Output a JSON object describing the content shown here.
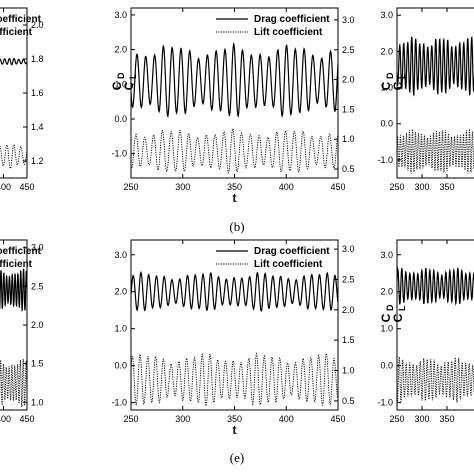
{
  "caption_b": "(b)",
  "caption_e": "(e)",
  "chart_data": [
    {
      "type": "line",
      "panel": "top-left (cropped)",
      "xlabel": "",
      "y_left_label": "",
      "y_right_label": "",
      "xlim": [
        350,
        450
      ],
      "x_ticks": [
        "400",
        "450"
      ],
      "ylim_left": [
        -1.5,
        3.2
      ],
      "y_left_ticks": [],
      "ylim_right": [
        1.1,
        2.1
      ],
      "y_right_ticks": [
        "1.2",
        "1.4",
        "1.6",
        "1.8",
        "2.0"
      ],
      "legend": {
        "position": "top",
        "entries": [
          "Drag coefficient",
          "Lift coefficient"
        ],
        "visible_text": [
          "g coefficient",
          "coefficient"
        ]
      },
      "series": [
        {
          "name": "Drag coefficient",
          "axis": "left",
          "style": "solid",
          "mean": 1.72,
          "amplitude": 0.07,
          "period": 10
        },
        {
          "name": "Lift coefficient",
          "axis": "right",
          "style": "dotted",
          "mean": 1.23,
          "amplitude": 0.06,
          "period": 15
        }
      ]
    },
    {
      "type": "line",
      "panel": "top-middle",
      "xlabel": "t",
      "y_left_label": "",
      "y_right_label": "",
      "xlim": [
        250,
        450
      ],
      "x_ticks": [
        "250",
        "300",
        "350",
        "400",
        "450"
      ],
      "ylim_left": [
        -1.7,
        3.2
      ],
      "y_left_ticks": [
        "-1.0",
        "0.0",
        "1.0",
        "2.0",
        "3.0"
      ],
      "ylim_right": [
        0.35,
        3.2
      ],
      "y_right_ticks": [
        "0.5",
        "1.0",
        "1.5",
        "2.0",
        "2.5",
        "3.0"
      ],
      "legend": {
        "position": "top-right",
        "entries": [
          "Drag coefficient",
          "Lift coefficient"
        ]
      },
      "series": [
        {
          "name": "Drag coefficient",
          "axis": "left",
          "style": "solid",
          "mean": 1.1,
          "amplitude": 0.85,
          "period": 8.5
        },
        {
          "name": "Lift coefficient",
          "axis": "right",
          "style": "dotted",
          "mean": 0.8,
          "amplitude": 0.3,
          "period": 8.5
        }
      ]
    },
    {
      "type": "line",
      "panel": "top-right (cropped)",
      "xlabel": "",
      "y_left_label": "",
      "y_right_label": "",
      "xlim": [
        250,
        450
      ],
      "x_ticks": [
        "250",
        "300",
        "350"
      ],
      "ylim_left": [
        -1.5,
        3.2
      ],
      "y_left_ticks": [
        "-1.0",
        "0.0",
        "1.0",
        "2.0",
        "3.0"
      ],
      "ylim_right": [
        0.35,
        3.2
      ],
      "y_right_ticks": [],
      "series": [
        {
          "name": "Drag coefficient",
          "axis": "left",
          "style": "solid",
          "mean": 1.6,
          "amplitude": 0.65,
          "period": 8
        },
        {
          "name": "Lift coefficient",
          "axis": "right",
          "style": "dotted",
          "mean": 0.8,
          "amplitude": 0.3,
          "period": 6
        }
      ]
    },
    {
      "type": "line",
      "panel": "bottom-left (cropped)",
      "xlabel": "",
      "y_left_label": "",
      "y_right_label": "",
      "xlim": [
        350,
        450
      ],
      "x_ticks": [
        "400",
        "450"
      ],
      "ylim_left": [
        -1.2,
        3.4
      ],
      "y_left_ticks": [],
      "ylim_right": [
        0.9,
        3.1
      ],
      "y_right_ticks": [
        "1.0",
        "1.5",
        "2.0",
        "2.5",
        "3.0"
      ],
      "legend": {
        "position": "top",
        "entries": [
          "Drag coefficient",
          "Lift coefficient"
        ],
        "visible_text": [
          "g coefficient",
          "coefficient"
        ]
      },
      "series": [
        {
          "name": "Drag coefficient",
          "axis": "left",
          "style": "solid",
          "mean": 2.05,
          "amplitude": 0.45,
          "period": 6
        },
        {
          "name": "Lift coefficient",
          "axis": "right",
          "style": "dotted",
          "mean": 1.25,
          "amplitude": 0.25,
          "period": 6
        }
      ]
    },
    {
      "type": "line",
      "panel": "bottom-middle",
      "xlabel": "t",
      "y_left_label": "",
      "y_right_label": "",
      "xlim": [
        250,
        450
      ],
      "x_ticks": [
        "250",
        "300",
        "350",
        "400",
        "450"
      ],
      "ylim_left": [
        -1.2,
        3.4
      ],
      "y_left_ticks": [
        "-1.0",
        "0.0",
        "1.0",
        "2.0",
        "3.0"
      ],
      "ylim_right": [
        0.35,
        3.15
      ],
      "y_right_ticks": [
        "0.5",
        "1.0",
        "1.5",
        "2.0",
        "2.5",
        "3.0"
      ],
      "legend": {
        "position": "top-right",
        "entries": [
          "Drag coefficient",
          "Lift coefficient"
        ]
      },
      "series": [
        {
          "name": "Drag coefficient",
          "axis": "left",
          "style": "solid",
          "mean": 2.0,
          "amplitude": 0.42,
          "period": 7.5
        },
        {
          "name": "Lift coefficient",
          "axis": "right",
          "style": "dotted",
          "mean": 0.85,
          "amplitude": 0.35,
          "period": 7.5
        }
      ]
    },
    {
      "type": "line",
      "panel": "bottom-right (cropped)",
      "xlabel": "",
      "y_left_label": "",
      "y_right_label": "",
      "xlim": [
        250,
        450
      ],
      "x_ticks": [
        "250",
        "300",
        "350"
      ],
      "ylim_left": [
        -1.2,
        3.4
      ],
      "y_left_ticks": [
        "-1.0",
        "0.0",
        "1.0",
        "2.0",
        "3.0"
      ],
      "ylim_right": [
        0.35,
        3.15
      ],
      "y_right_ticks": [],
      "series": [
        {
          "name": "Drag coefficient",
          "axis": "left",
          "style": "solid",
          "mean": 2.15,
          "amplitude": 0.4,
          "period": 8
        },
        {
          "name": "Lift coefficient",
          "axis": "right",
          "style": "dotted",
          "mean": 0.85,
          "amplitude": 0.3,
          "period": 7
        }
      ]
    }
  ]
}
